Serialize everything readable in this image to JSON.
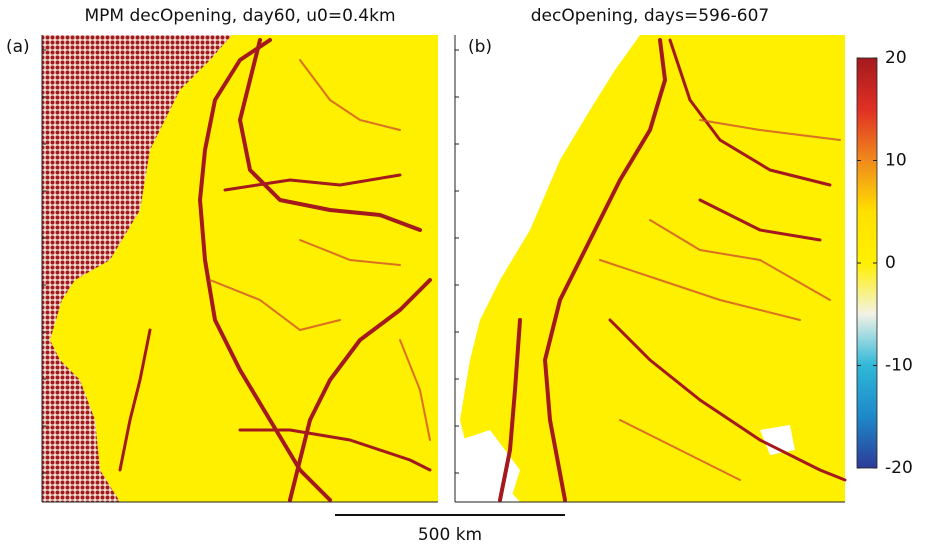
{
  "panels": [
    {
      "label": "(a)",
      "title": "MPM decOpening, day60, u0=0.4km"
    },
    {
      "label": "(b)",
      "title": "decOpening, days=596-607"
    }
  ],
  "colorbar": {
    "lim": [
      -20,
      20
    ],
    "ticks": [
      20,
      10,
      0,
      -10,
      -20
    ],
    "colors": [
      "#2c3c98",
      "#1e88c8",
      "#2fb8d8",
      "#f2f2e6",
      "#fff000",
      "#ffe000",
      "#f08a1c",
      "#e03024",
      "#a31a1e"
    ]
  },
  "scale_bar": {
    "label": "500 km"
  }
}
